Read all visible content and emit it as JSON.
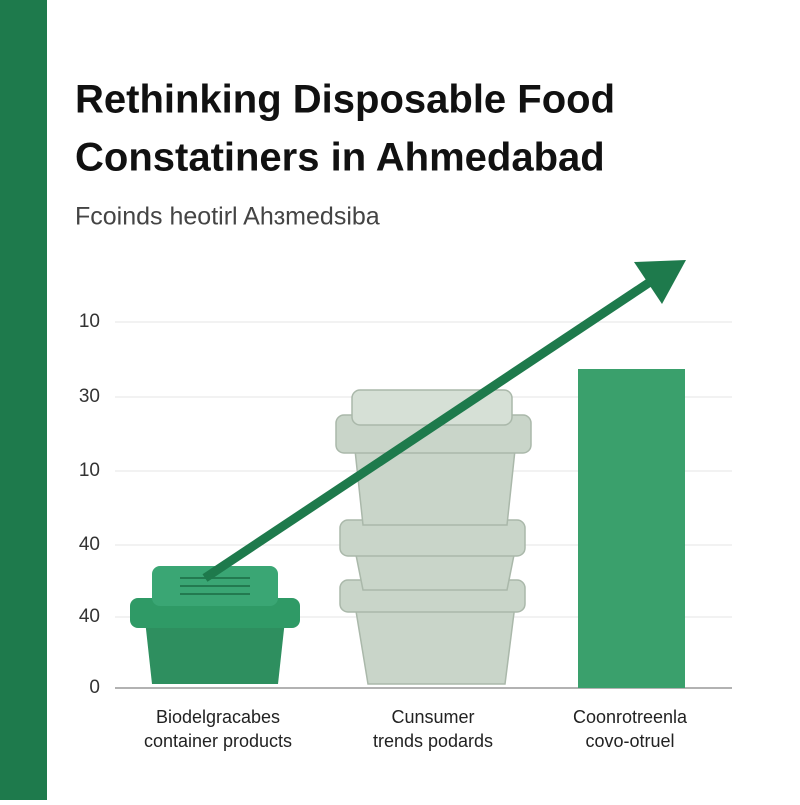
{
  "title": [
    "Rethinking Disposable Food",
    "Constatiners in Ahmedabad"
  ],
  "subtitle": "Fcoinds heotirl Ahɜmedsiba",
  "axis_labels": [
    "10",
    "30",
    "10",
    "40",
    "40",
    "0"
  ],
  "categories": [
    [
      "Biodelgracabes",
      "container products"
    ],
    [
      "Cunsumer",
      "trends podards"
    ],
    [
      "Coonrotreenla",
      "covo-otruel"
    ]
  ]
}
